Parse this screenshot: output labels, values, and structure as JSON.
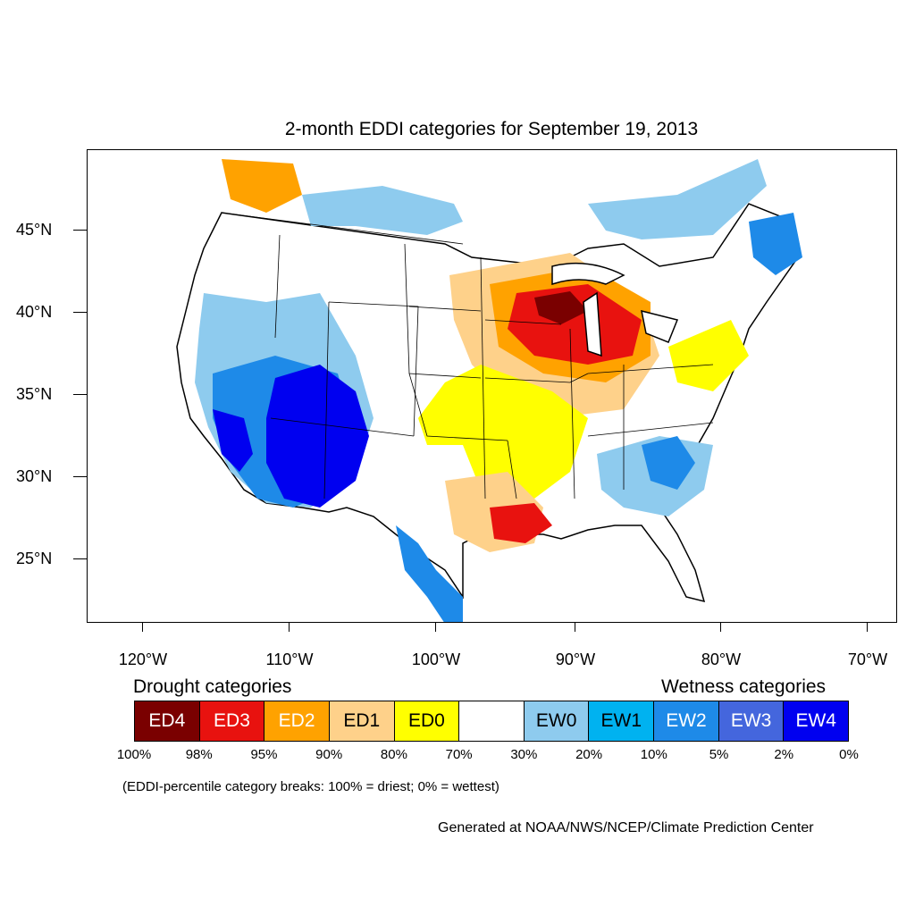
{
  "title": "2-month EDDI categories for September 19, 2013",
  "lat_labels": [
    "45°N",
    "40°N",
    "35°N",
    "30°N",
    "25°N"
  ],
  "lon_labels": [
    "120°W",
    "110°W",
    "100°W",
    "90°W",
    "80°W",
    "70°W"
  ],
  "legend": {
    "drought_heading": "Drought categories",
    "wetness_heading": "Wetness categories",
    "categories": [
      {
        "label": "ED4",
        "color": "#7a0000",
        "text_color": "#ffffff"
      },
      {
        "label": "ED3",
        "color": "#e8120f",
        "text_color": "#ffffff"
      },
      {
        "label": "ED2",
        "color": "#ffa200",
        "text_color": "#ffffff"
      },
      {
        "label": "ED1",
        "color": "#fed18a",
        "text_color": "#000000"
      },
      {
        "label": "ED0",
        "color": "#ffff00",
        "text_color": "#000000"
      },
      {
        "label": "",
        "color": "#ffffff",
        "text_color": "#000000"
      },
      {
        "label": "EW0",
        "color": "#8ecbee",
        "text_color": "#000000"
      },
      {
        "label": "EW1",
        "color": "#00b2f0",
        "text_color": "#000000"
      },
      {
        "label": "EW2",
        "color": "#1e8ae8",
        "text_color": "#ffffff"
      },
      {
        "label": "EW3",
        "color": "#4466dd",
        "text_color": "#ffffff"
      },
      {
        "label": "EW4",
        "color": "#0000f0",
        "text_color": "#ffffff"
      }
    ],
    "percentiles": [
      "100%",
      "98%",
      "95%",
      "90%",
      "80%",
      "70%",
      "30%",
      "20%",
      "10%",
      "5%",
      "2%",
      "0%"
    ]
  },
  "note": "(EDDI-percentile category breaks: 100% = driest; 0% = wettest)",
  "credit": "Generated at NOAA/NWS/NCEP/Climate Prediction Center"
}
